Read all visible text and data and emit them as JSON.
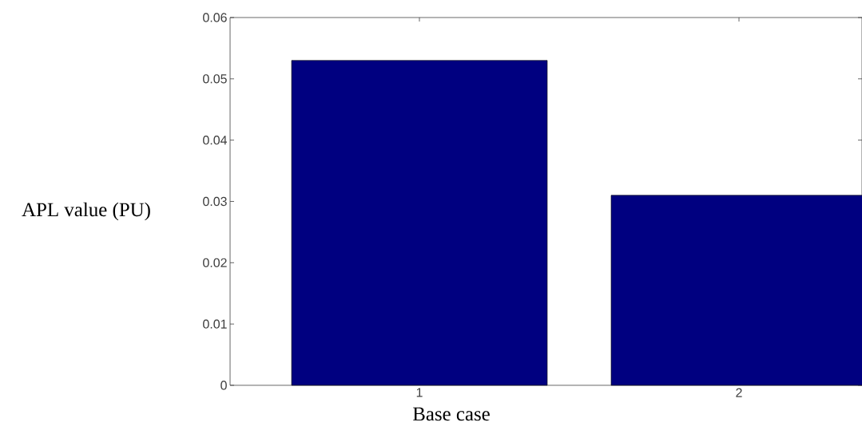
{
  "chart_data": {
    "type": "bar",
    "categories": [
      "1",
      "2"
    ],
    "values": [
      0.053,
      0.031
    ],
    "color": "#000080",
    "xlabel": "Base case",
    "ylabel": "APL value (PU)",
    "ylim": [
      0,
      0.06
    ],
    "yticks": [
      0,
      0.01,
      0.02,
      0.03,
      0.04,
      0.05,
      0.06
    ],
    "grid": false
  }
}
